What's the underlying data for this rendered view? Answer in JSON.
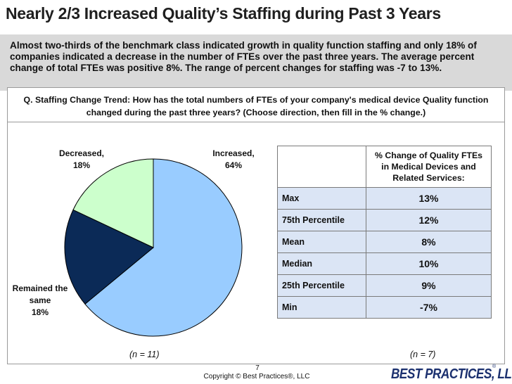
{
  "slide": {
    "title": "Nearly 2/3 Increased Quality’s Staffing during Past 3 Years",
    "summary": "Almost two-thirds of the benchmark class indicated growth in quality function staffing and only 18% of companies indicated a decrease in the number of FTEs over the past three years. The average percent change of total FTEs was positive 8%. The range of percent changes for staffing was -7 to 13%.",
    "question": "Q. Staffing Change Trend: How has the total numbers of FTEs of your company's medical device Quality function changed during the past three years? (Choose direction, then fill in the % change.)",
    "page_number": "7",
    "copyright": "Copyright ©  Best Practices®, LLC",
    "logo_text": "BEST PRACTICES, LLC",
    "logo_mark": "®"
  },
  "chart_data": [
    {
      "type": "pie",
      "slices": [
        {
          "label": "Increased,",
          "value_label": "64%",
          "value": 64,
          "color": "#99ccff"
        },
        {
          "label": "Remained the same",
          "value_label": "18%",
          "value": 18,
          "color": "#0b2a57"
        },
        {
          "label": "Decreased,",
          "value_label": "18%",
          "value": 18,
          "color": "#ccffcc"
        }
      ],
      "note": "(n = 11)"
    },
    {
      "type": "table",
      "header": "% Change of Quality FTEs in Medical Devices and Related Services:",
      "rows": [
        {
          "label": "Max",
          "value": "13%"
        },
        {
          "label": "75th Percentile",
          "value": "12%"
        },
        {
          "label": "Mean",
          "value": "8%"
        },
        {
          "label": "Median",
          "value": "10%"
        },
        {
          "label": "25th Percentile",
          "value": "9%"
        },
        {
          "label": "Min",
          "value": "-7%"
        }
      ],
      "note": "(n = 7)"
    }
  ]
}
